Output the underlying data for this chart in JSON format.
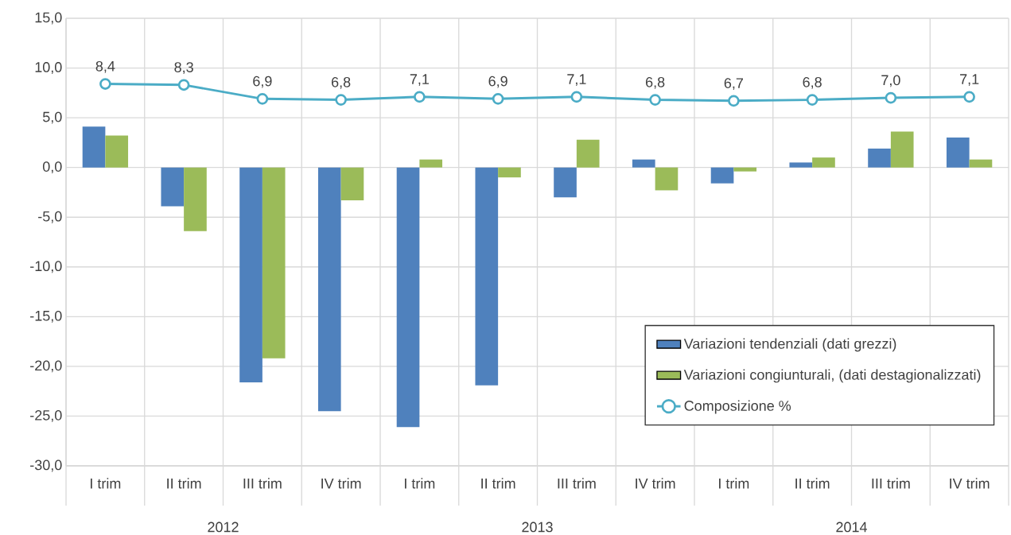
{
  "chart_data": {
    "type": "bar",
    "categories": [
      "I trim",
      "II trim",
      "III trim",
      "IV trim",
      "I trim",
      "II trim",
      "III trim",
      "IV trim",
      "I trim",
      "II trim",
      "III trim",
      "IV trim"
    ],
    "series": [
      {
        "name": "Variazioni tendenziali (dati grezzi)",
        "color": "#4f81bd",
        "values": [
          4.1,
          -3.9,
          -21.6,
          -24.5,
          -26.1,
          -21.9,
          -3.0,
          0.8,
          -1.6,
          0.5,
          1.9,
          3.0
        ]
      },
      {
        "name": "Variazioni congiunturali,  (dati destagionalizzati)",
        "color": "#9bbb59",
        "values": [
          3.2,
          -6.4,
          -19.2,
          -3.3,
          0.8,
          -1.0,
          2.8,
          -2.3,
          -0.4,
          1.0,
          3.6,
          0.8
        ]
      },
      {
        "name": "Composizione %",
        "type": "line",
        "color": "#4bacc6",
        "marker": "circle",
        "values": [
          8.4,
          8.3,
          6.9,
          6.8,
          7.1,
          6.9,
          7.1,
          6.8,
          6.7,
          6.8,
          7.0,
          7.1
        ],
        "value_labels": [
          "8,4",
          "8,3",
          "6,9",
          "6,8",
          "7,1",
          "6,9",
          "7,1",
          "6,8",
          "6,7",
          "6,8",
          "7,0",
          "7,1"
        ]
      }
    ],
    "annotations": [
      "2012",
      "2013",
      "2014"
    ],
    "ylim": [
      -30,
      15
    ],
    "yticks": [
      {
        "value": -30,
        "label": "-30,0"
      },
      {
        "value": -25,
        "label": "-25,0"
      },
      {
        "value": -20,
        "label": "-20,0"
      },
      {
        "value": -15,
        "label": "-15,0"
      },
      {
        "value": -10,
        "label": "-10,0"
      },
      {
        "value": -5,
        "label": "-5,0"
      },
      {
        "value": 0,
        "label": "0,0"
      },
      {
        "value": 5,
        "label": "5,0"
      },
      {
        "value": 10,
        "label": "10,0"
      },
      {
        "value": 15,
        "label": "15,0"
      }
    ],
    "grid": true,
    "legend": "bottom right"
  }
}
